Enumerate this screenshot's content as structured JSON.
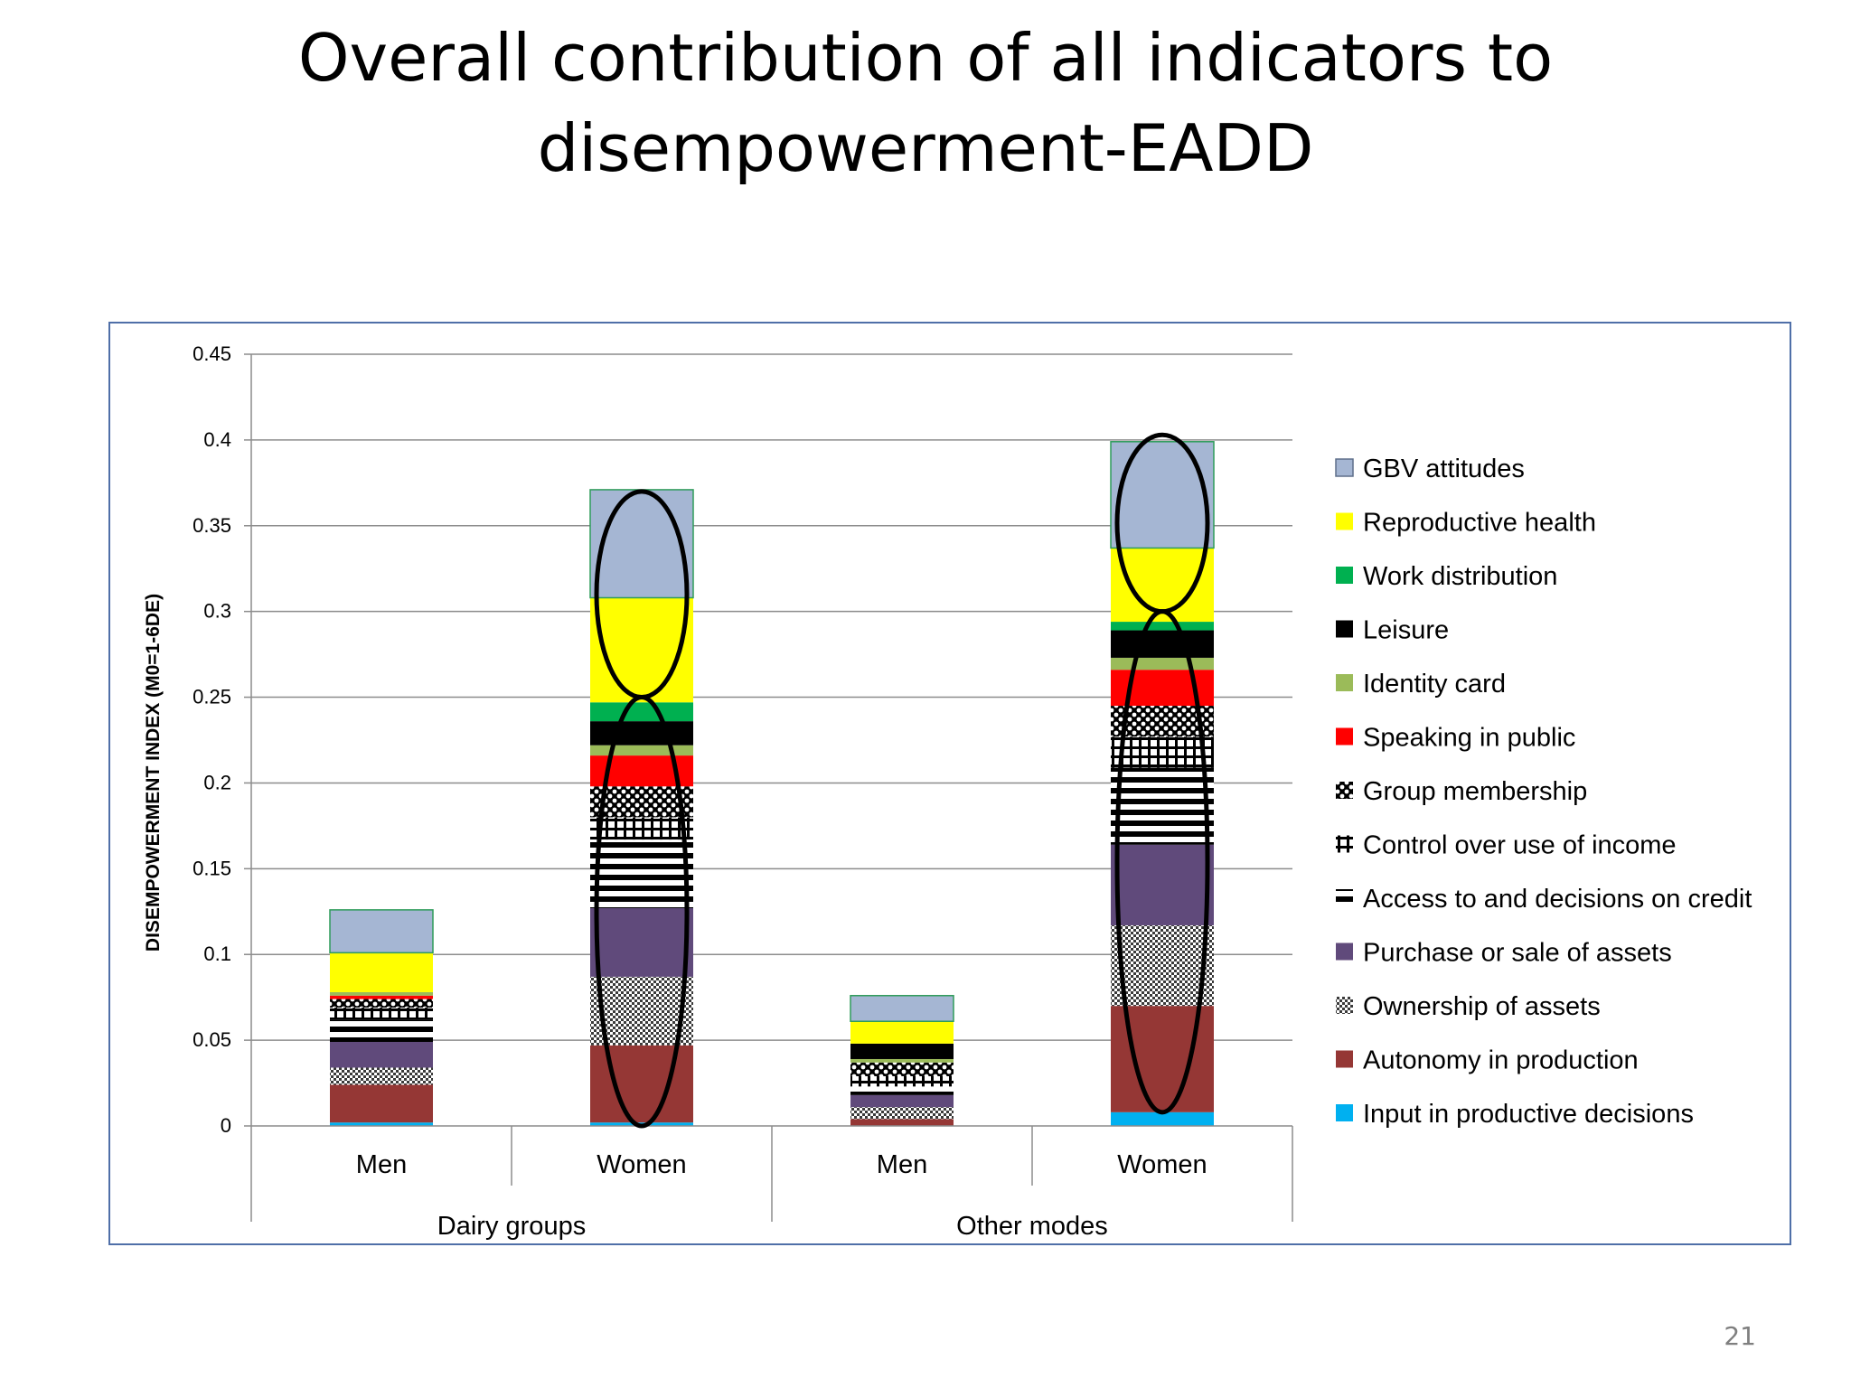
{
  "slide": {
    "title_line1": "Overall contribution of all indicators to",
    "title_line2": "disempowerment-EADD",
    "page_number": "21"
  },
  "chart_data": {
    "type": "bar",
    "stacked": true,
    "title": "",
    "xlabel": "",
    "ylabel": "DISEMPOWERMENT INDEX (M0=1-6DE)",
    "ylim": [
      0,
      0.45
    ],
    "yticks": [
      0,
      0.05,
      0.1,
      0.15,
      0.2,
      0.25,
      0.3,
      0.35,
      0.4,
      0.45
    ],
    "ytick_labels": [
      "0",
      "0.05",
      "0.1",
      "0.15",
      "0.2",
      "0.25",
      "0.3",
      "0.35",
      "0.4",
      "0.45"
    ],
    "grid": true,
    "legend_position": "right",
    "categories": [
      "Men",
      "Women",
      "Men",
      "Women"
    ],
    "groups": [
      {
        "name": "Dairy groups",
        "categories": [
          "Men",
          "Women"
        ]
      },
      {
        "name": "Other modes",
        "categories": [
          "Men",
          "Women"
        ]
      }
    ],
    "series": [
      {
        "name": "Input in productive decisions",
        "color": "#00b0f0",
        "pattern": "solid",
        "values": [
          0.002,
          0.002,
          0.0,
          0.008
        ]
      },
      {
        "name": "Autonomy in production",
        "color": "#953735",
        "pattern": "solid",
        "values": [
          0.022,
          0.045,
          0.004,
          0.062
        ]
      },
      {
        "name": "Ownership of assets",
        "color": "#7f7f7f",
        "pattern": "checker",
        "values": [
          0.01,
          0.04,
          0.007,
          0.047
        ]
      },
      {
        "name": "Purchase or sale of assets",
        "color": "#604a7b",
        "pattern": "solid",
        "values": [
          0.015,
          0.04,
          0.007,
          0.047
        ]
      },
      {
        "name": "Access to and decisions on credit",
        "color": "#000000",
        "pattern": "hstripes",
        "values": [
          0.013,
          0.04,
          0.005,
          0.045
        ]
      },
      {
        "name": "Control over use of income",
        "color": "#000000",
        "pattern": "grid",
        "values": [
          0.007,
          0.013,
          0.006,
          0.018
        ]
      },
      {
        "name": "Group membership",
        "color": "#000000",
        "pattern": "dots",
        "values": [
          0.005,
          0.018,
          0.008,
          0.018
        ]
      },
      {
        "name": "Speaking in public",
        "color": "#ff0000",
        "pattern": "solid",
        "values": [
          0.002,
          0.018,
          0.0,
          0.021
        ]
      },
      {
        "name": "Identity card",
        "color": "#9bbb59",
        "pattern": "solid",
        "values": [
          0.002,
          0.006,
          0.002,
          0.007
        ]
      },
      {
        "name": "Leisure",
        "color": "#000000",
        "pattern": "solid",
        "values": [
          0.0,
          0.014,
          0.009,
          0.016
        ]
      },
      {
        "name": "Work distribution",
        "color": "#00b050",
        "pattern": "solid",
        "values": [
          0.0,
          0.011,
          0.0,
          0.005
        ]
      },
      {
        "name": "Reproductive health",
        "color": "#ffff00",
        "pattern": "solid",
        "values": [
          0.023,
          0.061,
          0.013,
          0.043
        ]
      },
      {
        "name": "GBV attitudes",
        "color": "#a5b6d3",
        "pattern": "solid",
        "values": [
          0.025,
          0.063,
          0.015,
          0.062
        ]
      }
    ],
    "annotations": [
      {
        "type": "ellipse",
        "category_index": 1,
        "y_range": [
          0.25,
          0.37
        ]
      },
      {
        "type": "ellipse",
        "category_index": 1,
        "y_range": [
          0.0,
          0.25
        ]
      },
      {
        "type": "ellipse",
        "category_index": 3,
        "y_range": [
          0.3,
          0.403
        ]
      },
      {
        "type": "ellipse",
        "category_index": 3,
        "y_range": [
          0.008,
          0.3
        ]
      }
    ]
  }
}
